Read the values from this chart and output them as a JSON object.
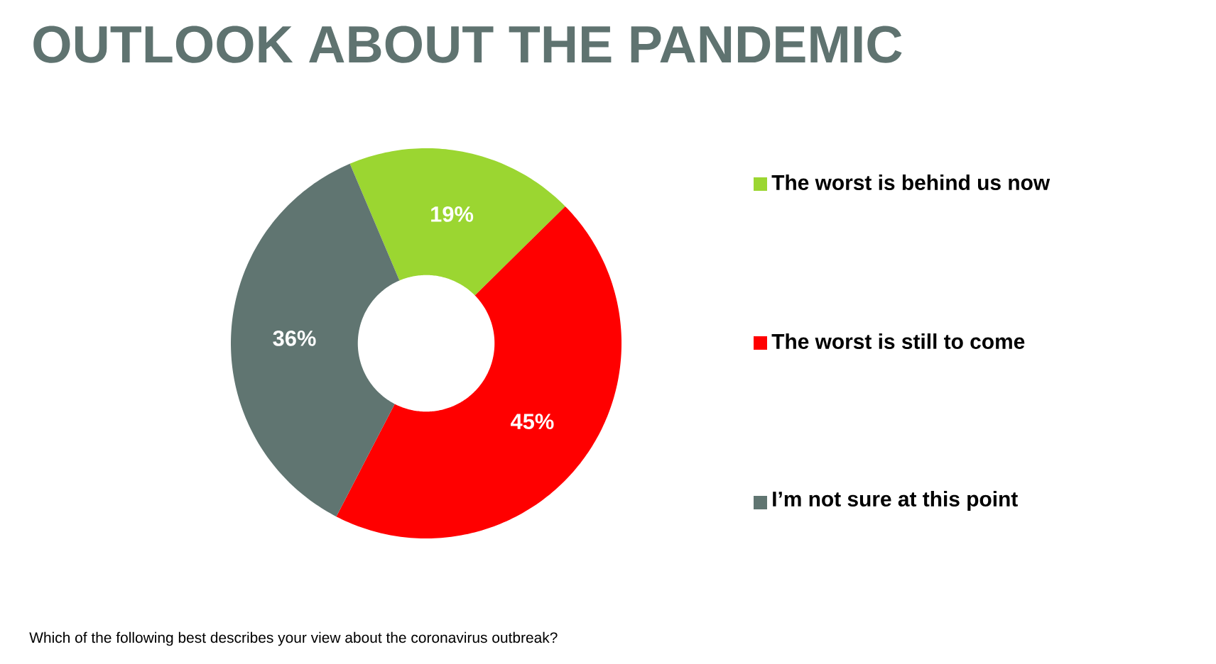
{
  "chart_data": {
    "type": "donut",
    "title": "OUTLOOK ABOUT THE PANDEMIC",
    "annotations": [
      "Which of the following best describes your view about the coronavirus outbreak?"
    ],
    "categories": [
      "The worst is behind us now",
      "The worst is still to come",
      "I’m not sure at this point"
    ],
    "values": [
      19,
      45,
      36
    ],
    "value_labels": [
      "19%",
      "45%",
      "36%"
    ],
    "colors": [
      "#9bd631",
      "#ff0000",
      "#607571"
    ],
    "legend": "right"
  }
}
